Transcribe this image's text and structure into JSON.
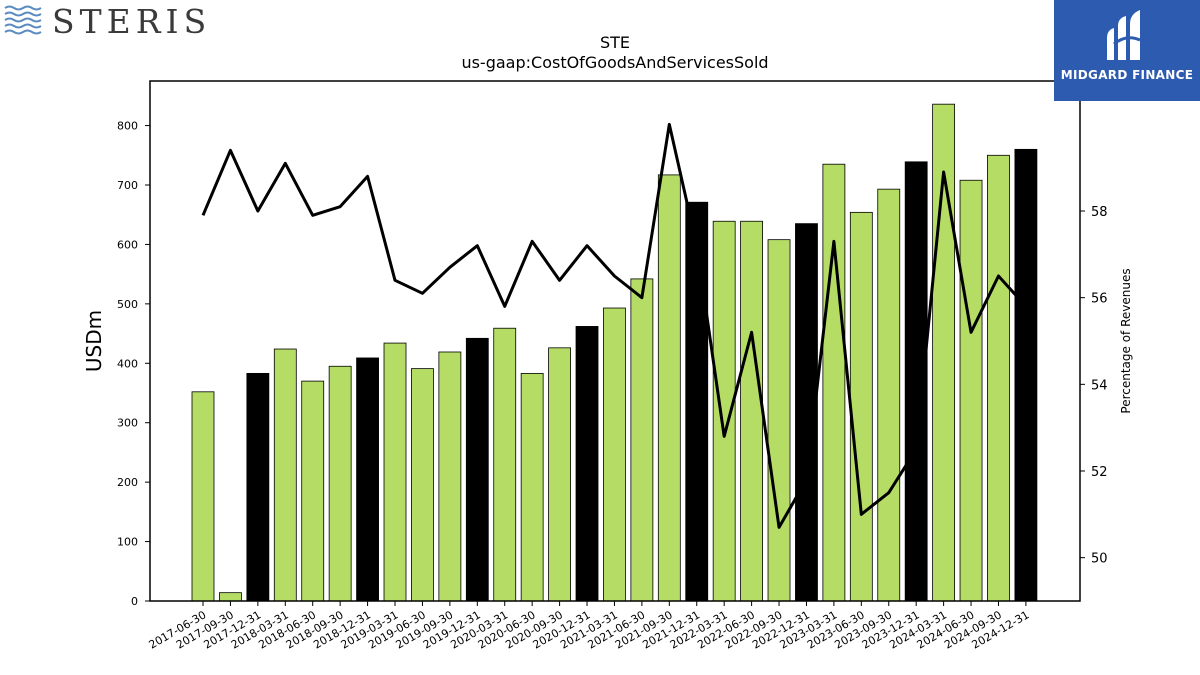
{
  "header": {
    "company_wordmark": "STERIS",
    "watermark_brand": "MIDGARD FINANCE"
  },
  "colors": {
    "bar_green": "#b5dd66",
    "bar_black": "#000000",
    "line": "#000000",
    "logo_blue": "#2d5bb0",
    "steris_blue": "#5b8cc0"
  },
  "chart_data": {
    "type": "bar",
    "title": "STE",
    "subtitle": "us-gaap:CostOfGoodsAndServicesSold",
    "ylabel": "USDm",
    "y2label": "Percentage of Revenues",
    "ylim": [
      0,
      875
    ],
    "y2lim": [
      49,
      61
    ],
    "yticks": [
      0,
      100,
      200,
      300,
      400,
      500,
      600,
      700,
      800
    ],
    "y2ticks": [
      50,
      52,
      54,
      56,
      58
    ],
    "grid": false,
    "categories": [
      "2017-06-30",
      "2017-09-30",
      "2017-12-31",
      "2018-03-31",
      "2018-06-30",
      "2018-09-30",
      "2018-12-31",
      "2019-03-31",
      "2019-06-30",
      "2019-09-30",
      "2019-12-31",
      "2020-03-31",
      "2020-06-30",
      "2020-09-30",
      "2020-12-31",
      "2021-03-31",
      "2021-06-30",
      "2021-09-30",
      "2021-12-31",
      "2022-03-31",
      "2022-06-30",
      "2022-09-30",
      "2022-12-31",
      "2023-03-31",
      "2023-06-30",
      "2023-09-30",
      "2023-12-31",
      "2024-03-31",
      "2024-06-30",
      "2024-09-30",
      "2024-12-31"
    ],
    "series": [
      {
        "kind": "bar",
        "values": [
          352,
          14,
          383,
          424,
          370,
          395,
          409,
          434,
          391,
          419,
          442,
          459,
          383,
          426,
          462,
          493,
          542,
          717,
          671,
          639,
          639,
          608,
          635,
          735,
          654,
          693,
          739,
          836,
          708,
          750,
          760
        ],
        "fills": [
          "green",
          "green",
          "black",
          "green",
          "green",
          "green",
          "black",
          "green",
          "green",
          "green",
          "black",
          "green",
          "green",
          "green",
          "black",
          "green",
          "green",
          "green",
          "black",
          "green",
          "green",
          "green",
          "black",
          "green",
          "green",
          "green",
          "black",
          "green",
          "green",
          "green",
          "black"
        ]
      },
      {
        "kind": "line",
        "axis": "right",
        "values": [
          57.9,
          59.4,
          58.0,
          59.1,
          57.9,
          58.1,
          58.8,
          56.4,
          56.1,
          56.7,
          57.2,
          55.8,
          57.3,
          56.4,
          57.2,
          56.5,
          56.0,
          60.0,
          57.2,
          52.8,
          55.2,
          50.7,
          51.8,
          57.3,
          51.0,
          51.5,
          52.5,
          58.9,
          55.2,
          56.5,
          55.8
        ]
      }
    ]
  }
}
